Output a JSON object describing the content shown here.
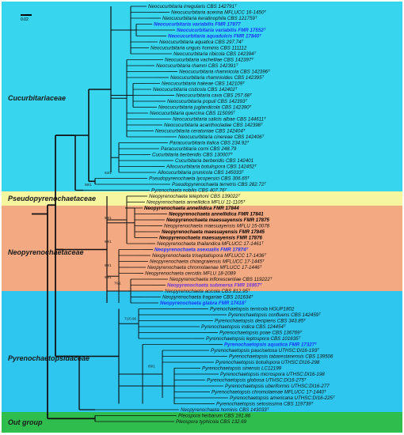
{
  "scale_label": "0.02",
  "colors": {
    "cucurbitariaceae": "#37d5ee",
    "pseudopyrenochaetaceae": "#f6f5a0",
    "neopyrenochaetaceae": "#f3a982",
    "pyrenochaetopsidaceae": "#2ec6ef",
    "outgroup": "#2fbe4d",
    "blue_taxon": "#1a32ff",
    "purple_taxon": "#6b36d8",
    "branch": "#111111"
  },
  "families": [
    {
      "name": "Cucurbitariaceae",
      "key": "cucurbitariaceae"
    },
    {
      "name": "Pseudopyrenochaetaceae",
      "key": "pseudopyrenochaetaceae"
    },
    {
      "name": "Neopyrenochaetaceae",
      "key": "neopyrenochaetaceae"
    },
    {
      "name": "Pyrenochaetopsidaceae",
      "key": "pyrenochaetopsidaceae"
    },
    {
      "name": "Out group",
      "key": "outgroup"
    }
  ],
  "taxa": [
    {
      "label": "Neocucurbitaria irregularis CBS 142791ᵀ",
      "style": "n"
    },
    {
      "label": "Neocucurbitaria acerina MFLUCC 16-1450ᵀ",
      "style": "n"
    },
    {
      "label": "Neocucurbitaria keratinophila CBS 121759ᵀ",
      "style": "n"
    },
    {
      "label": "Neocucurbitaria variabilis FMR 17877",
      "style": "b"
    },
    {
      "label": "Neocucurbitaria variabilis FMR 17552ᵀ",
      "style": "b"
    },
    {
      "label": "Neocucurbitaria aquadulcis FMR 17840ᵀ",
      "style": "b"
    },
    {
      "label": "Neocucurbitaria aquatica CBS 297.74ᵀ",
      "style": "n"
    },
    {
      "label": "Neocucurbitaria unguis hominis CBS 111112",
      "style": "n"
    },
    {
      "label": "Neocucurbitaria ribicola CBS 142394ᵀ",
      "style": "n"
    },
    {
      "label": "Neocucurbitaria vachelliae CBS 142397ᵀ",
      "style": "n"
    },
    {
      "label": "Neocucurbitaria rhamni CBS 142391ᵀ",
      "style": "n"
    },
    {
      "label": "Neocucurbitaria rhamnicola CBS 142396ᵀ",
      "style": "n"
    },
    {
      "label": "Neocucurbitaria rhamnioides CBS 142395ᵀ",
      "style": "n"
    },
    {
      "label": "Neocucurbitaria hakeae CBS 142109ᵀ",
      "style": "n"
    },
    {
      "label": "Neocucurbitaria cisticola CBS 142402ᵀ",
      "style": "n"
    },
    {
      "label": "Neocucurbitaria cava CBS 257.68ᵀ",
      "style": "n"
    },
    {
      "label": "Neocucurbitaria populi CBS 142393ᵀ",
      "style": "n"
    },
    {
      "label": "Neocucurbitaria juglandicola CBS 142390ᵀ",
      "style": "n"
    },
    {
      "label": "Neocucurbitaria quercina CBS 115095ᵀ",
      "style": "n"
    },
    {
      "label": "Neocucurbitaria salicis albae CBS 144611ᵀ",
      "style": "n"
    },
    {
      "label": "Neocucurbitaria acanthocladae CBS 142398ᵀ",
      "style": "n"
    },
    {
      "label": "Neocucurbitaria ceratoniae CBS 142404ᵀ",
      "style": "n"
    },
    {
      "label": "Neocucurbitaria cinereae CBS 142406ᵀ",
      "style": "n"
    },
    {
      "label": "Paracucurbitaria italica CBS 234.92ᵀ",
      "style": "n"
    },
    {
      "label": "Paracucurbitaria corni CBS 248.79",
      "style": "n"
    },
    {
      "label": "Cucurbitaria berberidis CBS 130007ᵀ",
      "style": "n"
    },
    {
      "label": "Cucurbitaria berberidis CBS 142401",
      "style": "n"
    },
    {
      "label": "Allocucurbitaria botulispora CBS 142452ᵀ",
      "style": "n"
    },
    {
      "label": "Allocucurbitaria prunicola CBS 145033ᵀ",
      "style": "n"
    },
    {
      "label": "Pseudopyrenochaeta lycopersici CBS 306.65ᵀ",
      "style": "n"
    },
    {
      "label": "Pseudopyrenochaeta terretris CBS 282.72ᵀ",
      "style": "n"
    },
    {
      "label": "Pyrenochaeta nobilis CBS 407.76ᵀ",
      "style": "n"
    },
    {
      "label": "Neopyrenochaeta telephoni CBS 139022ᵀ",
      "style": "n"
    },
    {
      "label": "Neopyrenochaeta annellidica MFLU 11-1105ᵀ",
      "style": "n"
    },
    {
      "label": "Neopyrenochaeta annellidica FMR 17844",
      "style": "k"
    },
    {
      "label": "Neopyrenochaeta annellidica FMR 17841",
      "style": "k"
    },
    {
      "label": "Neopyrenochaeta maesuayensis FMR 17875",
      "style": "k"
    },
    {
      "label": "Neopyrenochaeta maesuayensis MFLU 15-0078",
      "style": "n"
    },
    {
      "label": "Neopyrenochaeta maesuayensis FMR 17845",
      "style": "k"
    },
    {
      "label": "Neopyrenochaeta maesuayensis FMR 17876",
      "style": "k"
    },
    {
      "label": "Neopyrenochaeta thailandica MFLUCC 17-1461ᵀ",
      "style": "n"
    },
    {
      "label": "Neopyrenochaeta asexualis FMR 17874ᵀ",
      "style": "b"
    },
    {
      "label": "Neopyrenochaeta triseptatispora MFLUCC 17-1436ᵀ",
      "style": "n"
    },
    {
      "label": "Neopyrenochaeta chiangraiensis MFLUCC 17-1445ᵀ",
      "style": "n"
    },
    {
      "label": "Neopyrenochaeta chromolaenae MFLUCC 17-1446ᵀ",
      "style": "n"
    },
    {
      "label": "Neopyrenochaeta cercidis MFLU 18-2089",
      "style": "n"
    },
    {
      "label": "Neopyrenochaeta inflorescentiae CBS 119222ᵀ",
      "style": "n"
    },
    {
      "label": "Neopyrenochaeta submersa FMR 16957ᵀ",
      "style": "p"
    },
    {
      "label": "Neopyrenochaeta acicola CBS 812.95ᵀ",
      "style": "n"
    },
    {
      "label": "Neopyrenochaeta fragariae CBS 101634ᵀ",
      "style": "n"
    },
    {
      "label": "Neopyrenochaeta glabra FMR 17418ᵀ",
      "style": "b"
    },
    {
      "label": "Pyrenochaetopsis terricola HGUP1802",
      "style": "n"
    },
    {
      "label": "Pyrenochaetopsis confluens CBS 142459ᵀ",
      "style": "n"
    },
    {
      "label": "Pyrenochaetopsis decipiens CBS 343.85ᵀ",
      "style": "n"
    },
    {
      "label": "Pyrenochaetopsis indica CBS 124454ᵀ",
      "style": "n"
    },
    {
      "label": "Pyrenochaetopsis poae CBS 136769ᵀ",
      "style": "n"
    },
    {
      "label": "Pyrenochaetopsis leptospora CBS 101635ᵀ",
      "style": "n"
    },
    {
      "label": "Pyrenochaetopsis aquatica FMR 17327ᵀ",
      "style": "b"
    },
    {
      "label": "Pyrenochaetopsis paucisetosa UTHSC:DI16-193ᵀ",
      "style": "n"
    },
    {
      "label": "Pyrenochaetopsis tabarestanensis CBS 139506",
      "style": "n"
    },
    {
      "label": "Pyrenochaetopsis botulispora UTHSC:DI16-298",
      "style": "n"
    },
    {
      "label": "Pyrenochaetopsis sinensis LC12199",
      "style": "n"
    },
    {
      "label": "Pyrenochaetopsis microspora UTHSC:DI16-198",
      "style": "n"
    },
    {
      "label": "Pyrenochaetopsis globosa UTHSC:DI16-275ᵀ",
      "style": "n"
    },
    {
      "label": "Pyrenochaetopsis uberiformis UTHSC:DI16-277",
      "style": "n"
    },
    {
      "label": "Pyrenochaetopsis chromolaenae MFLUCC 17-1440ᵀ",
      "style": "n"
    },
    {
      "label": "Pyrenochaetopsis americana UTHSC:DI16-225ᵀ",
      "style": "n"
    },
    {
      "label": "Pyrenochaetopsis setosissima CBS 119739ᵀ",
      "style": "n"
    },
    {
      "label": "Neopyrenochaeta hominis CBS 143033ᵀ",
      "style": "n"
    },
    {
      "label": "Pleospora herbarum CBS 191.86",
      "style": "n"
    },
    {
      "label": "Pleospora typhicola CBS 132.69",
      "style": "n"
    }
  ],
  "support_labels": [
    "93/1",
    "98/1",
    "99/1",
    "99/1",
    "99/1",
    "76/1",
    "99/1",
    "71/0.96",
    "89/1"
  ]
}
